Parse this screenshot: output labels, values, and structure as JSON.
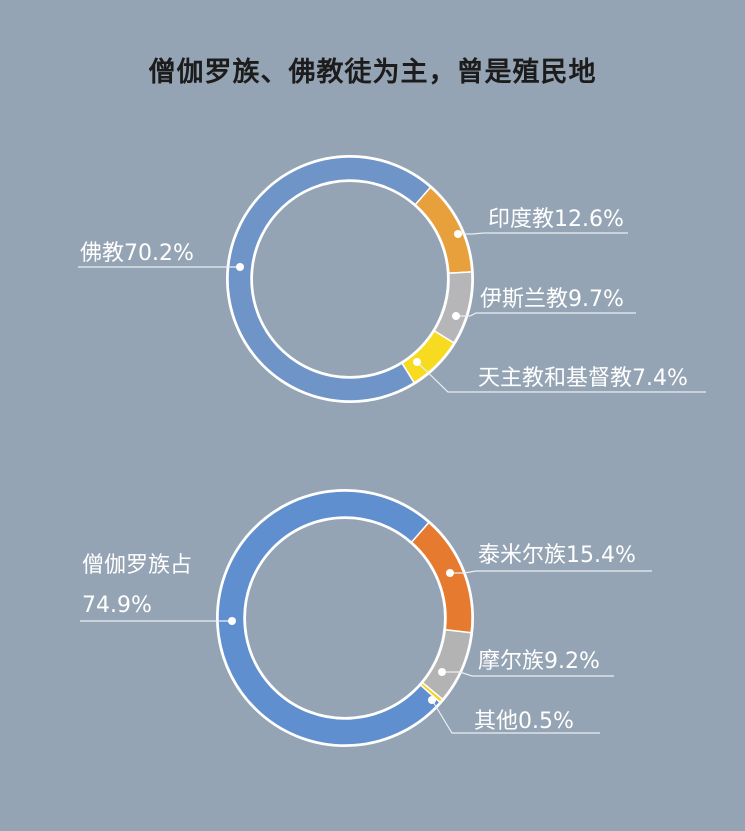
{
  "title": "僧伽罗族、佛教徒为主，曾是殖民地",
  "colors": {
    "background": "#95a4b4",
    "ring_track": "#ffffff",
    "leader_line": "#eaeef3",
    "label_text": "#ffffff"
  },
  "chart_data": [
    {
      "type": "pie",
      "variant": "donut",
      "labels": [
        "佛教70.2%",
        "印度教12.6%",
        "伊斯兰教9.7%",
        "天主教和基督教7.4%"
      ],
      "slices": [
        {
          "name": "佛教",
          "value": 70.2,
          "color": "#6f94c7"
        },
        {
          "name": "印度教",
          "value": 12.6,
          "color": "#e8a03c"
        },
        {
          "name": "伊斯兰教",
          "value": 9.7,
          "color": "#b6b6b8"
        },
        {
          "name": "天主教和基督教",
          "value": 7.4,
          "color": "#f6db21"
        }
      ]
    },
    {
      "type": "pie",
      "variant": "donut",
      "labels": [
        "僧伽罗族占",
        "74.9%",
        "泰米尔族15.4%",
        "摩尔族9.2%",
        "其他0.5%"
      ],
      "slices": [
        {
          "name": "僧伽罗族",
          "value": 74.9,
          "color": "#5f8fcf"
        },
        {
          "name": "泰米尔族",
          "value": 15.4,
          "color": "#e67a2e"
        },
        {
          "name": "摩尔族",
          "value": 9.2,
          "color": "#b3b3b3"
        },
        {
          "name": "其他",
          "value": 0.5,
          "color": "#f4d21f"
        }
      ]
    }
  ]
}
